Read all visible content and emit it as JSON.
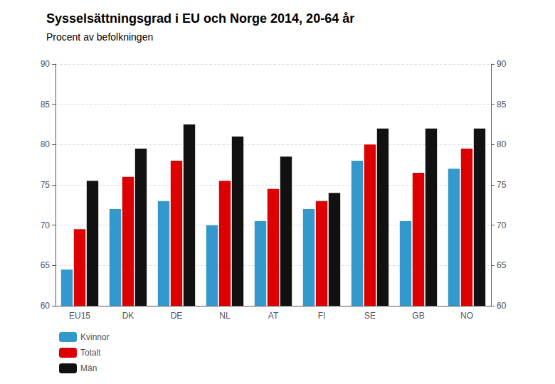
{
  "chart_data": {
    "type": "bar",
    "title": "Sysselsättningsgrad i EU och Norge 2014, 20-64 år",
    "subtitle": "Procent av befolkningen",
    "categories": [
      "EU15",
      "DK",
      "DE",
      "NL",
      "AT",
      "FI",
      "SE",
      "GB",
      "NO"
    ],
    "series": [
      {
        "name": "Kvinnor",
        "color": "#3399cc",
        "values": [
          64.5,
          72.0,
          73.0,
          70.0,
          70.5,
          72.0,
          78.0,
          70.5,
          77.0
        ]
      },
      {
        "name": "Totalt",
        "color": "#dd0000",
        "values": [
          69.5,
          76.0,
          78.0,
          75.5,
          74.5,
          73.0,
          80.0,
          76.5,
          79.5
        ]
      },
      {
        "name": "Män",
        "color": "#111111",
        "values": [
          75.5,
          79.5,
          82.5,
          81.0,
          78.5,
          74.0,
          82.0,
          82.0,
          82.0
        ]
      }
    ],
    "ylim": [
      60,
      90
    ],
    "yticks": [
      60,
      65,
      70,
      75,
      80,
      85,
      90
    ],
    "y2lim": [
      60,
      90
    ],
    "y2ticks": [
      60,
      65,
      70,
      75,
      80,
      85,
      90
    ],
    "grid": true,
    "legend": "lower left"
  }
}
